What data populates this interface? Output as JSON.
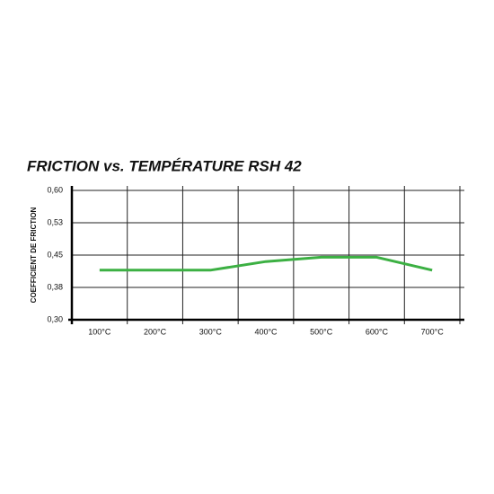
{
  "chart_data": {
    "type": "line",
    "title": "FRICTION vs. TEMPÉRATURE RSH 42",
    "y_label": "COEFFICIENT DE FRICTION",
    "categories": [
      "100°C",
      "200°C",
      "300°C",
      "400°C",
      "500°C",
      "600°C",
      "700°C"
    ],
    "series": [
      {
        "name": "RSH 42",
        "color": "#3cb043",
        "values": [
          0.415,
          0.415,
          0.415,
          0.435,
          0.445,
          0.445,
          0.415
        ]
      }
    ],
    "ylim": [
      0.3,
      0.6
    ],
    "yticks": [
      {
        "value": 0.3,
        "label": "0,30"
      },
      {
        "value": 0.375,
        "label": "0,38"
      },
      {
        "value": 0.45,
        "label": "0,45"
      },
      {
        "value": 0.525,
        "label": "0,53"
      },
      {
        "value": 0.6,
        "label": "0,60"
      }
    ],
    "grid": true
  }
}
